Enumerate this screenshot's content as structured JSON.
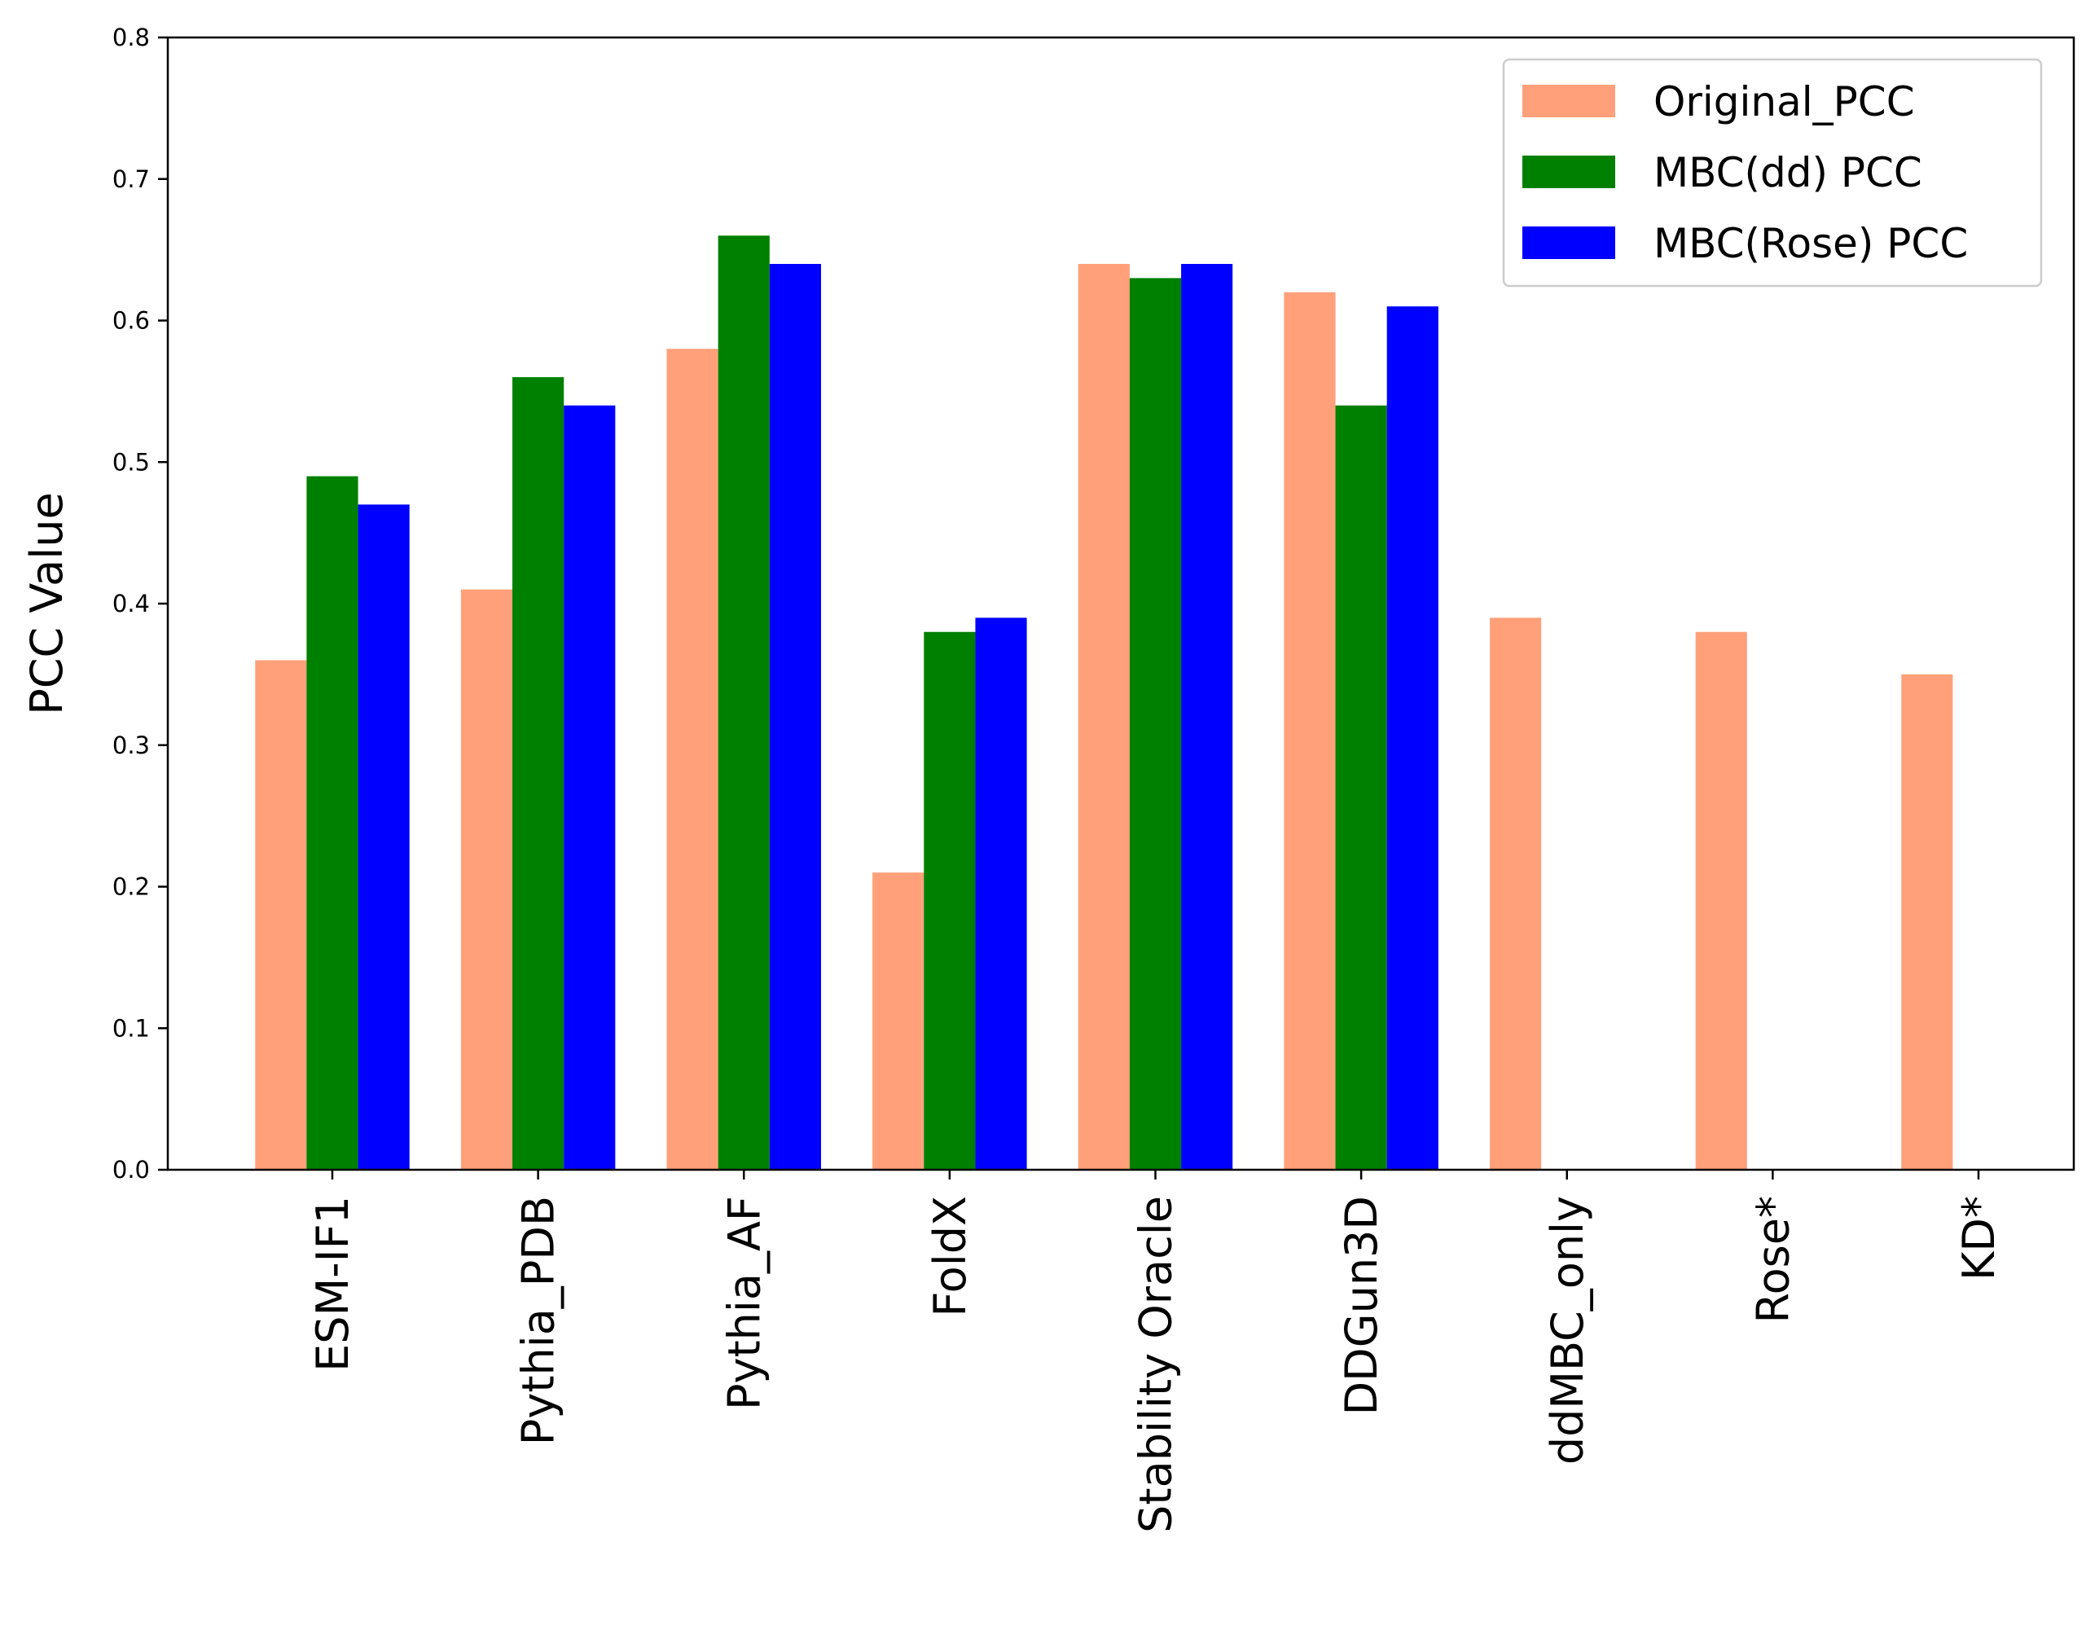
{
  "chart_data": {
    "type": "bar",
    "title": "",
    "xlabel": "",
    "ylabel": "PCC Value",
    "ylim": [
      0,
      0.8
    ],
    "yticks": [
      "0.0",
      "0.1",
      "0.2",
      "0.3",
      "0.4",
      "0.5",
      "0.6",
      "0.7",
      "0.8"
    ],
    "categories": [
      "ESM-IF1",
      "Pythia_PDB",
      "Pythia_AF",
      "FoldX",
      "Stability Oracle",
      "DDGun3D",
      "ddMBC_only",
      "Rose*",
      "KD*"
    ],
    "series": [
      {
        "name": "Original_PCC",
        "color": "#FFA07A",
        "values": [
          0.36,
          0.41,
          0.58,
          0.21,
          0.64,
          0.62,
          0.39,
          0.38,
          0.35
        ]
      },
      {
        "name": "MBC(dd) PCC",
        "color": "#008000",
        "values": [
          0.49,
          0.56,
          0.66,
          0.38,
          0.63,
          0.54,
          0,
          0,
          0
        ]
      },
      {
        "name": "MBC(Rose) PCC",
        "color": "#0000FF",
        "values": [
          0.47,
          0.54,
          0.64,
          0.39,
          0.64,
          0.61,
          0,
          0,
          0
        ]
      }
    ],
    "legend": {
      "position": "top-right"
    },
    "grid": false
  }
}
